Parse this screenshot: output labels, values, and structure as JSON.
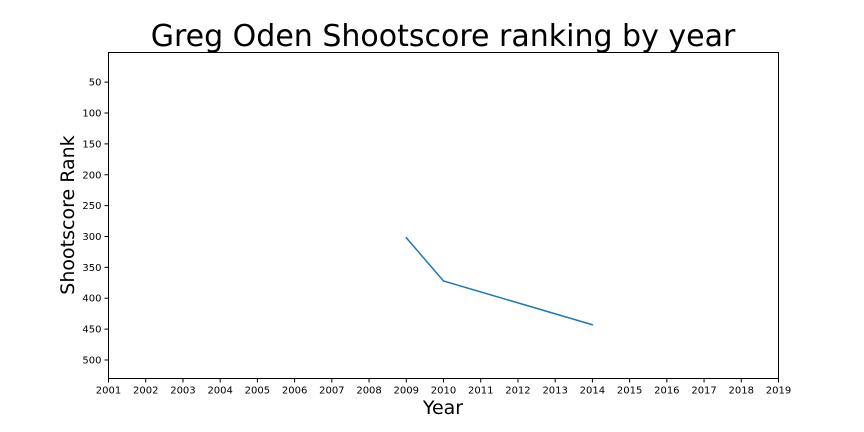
{
  "chart_data": {
    "type": "line",
    "title": "Greg Oden Shootscore ranking by year",
    "xlabel": "Year",
    "ylabel": "Shootscore Rank",
    "xlim": [
      2001,
      2019
    ],
    "ylim": [
      530,
      2
    ],
    "y_inverted": true,
    "x_ticks": [
      2001,
      2002,
      2003,
      2004,
      2005,
      2006,
      2007,
      2008,
      2009,
      2010,
      2011,
      2012,
      2013,
      2014,
      2015,
      2016,
      2017,
      2018,
      2019
    ],
    "y_ticks": [
      50,
      100,
      150,
      200,
      250,
      300,
      350,
      400,
      450,
      500
    ],
    "grid": false,
    "series": [
      {
        "color": "#1f77b4",
        "x": [
          2009,
          2010,
          2014
        ],
        "y": [
          302,
          372,
          443
        ]
      }
    ]
  }
}
